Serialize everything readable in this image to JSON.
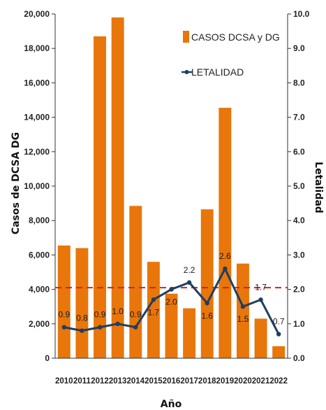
{
  "chart_data": {
    "type": "bar",
    "categories": [
      "2010",
      "2011",
      "2012",
      "2013",
      "2014",
      "2015",
      "2016",
      "2017",
      "2018",
      "2019",
      "2020",
      "2021",
      "2022"
    ],
    "series": [
      {
        "name": "CASOS DCSA y DG",
        "type": "bar",
        "axis": "left",
        "color": "#E8760A",
        "values": [
          6550,
          6400,
          18700,
          19800,
          8850,
          5600,
          3750,
          2900,
          8650,
          14550,
          5500,
          2300,
          700
        ]
      },
      {
        "name": "LETALIDAD",
        "type": "line",
        "axis": "right",
        "color": "#1F3E60",
        "values": [
          0.9,
          0.8,
          0.9,
          1.0,
          0.9,
          1.7,
          2.0,
          2.2,
          1.6,
          2.6,
          1.5,
          1.7,
          0.7
        ],
        "labels": [
          "0.9",
          "0.8",
          "0.9",
          "1.0",
          "0.9",
          "1.7",
          "2.0",
          "2.2",
          "1.6",
          "2.6",
          "1.5",
          "1.7",
          "0.7"
        ]
      }
    ],
    "reference_line": {
      "axis": "right",
      "value": 2.05,
      "color": "#D62020",
      "style": "dashed"
    },
    "xlabel": "Año",
    "ylabel": "Casos de DCSA  DG",
    "y2label": "Letalidad",
    "ylim": [
      0,
      20000
    ],
    "y2lim": [
      0,
      10
    ],
    "yticks": [
      "0",
      "2,000",
      "4,000",
      "6,000",
      "8,000",
      "10,000",
      "12,000",
      "14,000",
      "16,000",
      "18,000",
      "20,000"
    ],
    "y2ticks": [
      "0.0",
      "1.0",
      "2.0",
      "3.0",
      "4.0",
      "5.0",
      "6.0",
      "7.0",
      "8.0",
      "9.0",
      "10.0"
    ],
    "legend_position": "top-right",
    "grid": false
  }
}
